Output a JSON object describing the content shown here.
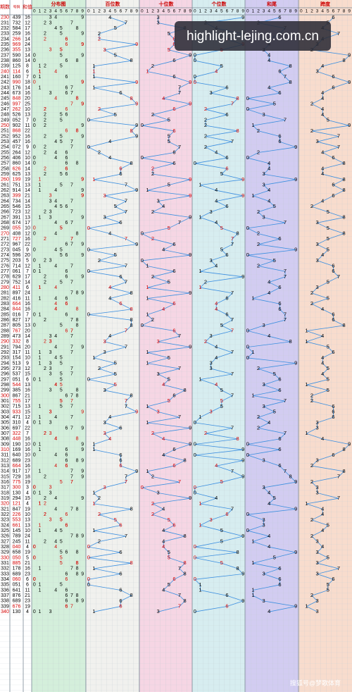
{
  "header": {
    "period": "期数",
    "number": "号码",
    "sum": "和值",
    "sections": [
      "分布图",
      "百位数",
      "十位数",
      "个位数",
      "和尾",
      "跨度"
    ],
    "digits": [
      0,
      1,
      2,
      3,
      4,
      5,
      6,
      7,
      8,
      9
    ]
  },
  "rows": [
    [
      230,
      "439",
      16,
      4,
      3,
      9,
      6,
      6
    ],
    [
      231,
      "732",
      12,
      7,
      3,
      2,
      2,
      5
    ],
    [
      232,
      "584",
      17,
      5,
      8,
      4,
      7,
      4
    ],
    [
      233,
      "259",
      16,
      2,
      5,
      9,
      6,
      7
    ],
    [
      234,
      "266",
      14,
      2,
      6,
      6,
      4,
      4
    ],
    [
      235,
      "969",
      24,
      9,
      6,
      9,
      4,
      3
    ],
    [
      236,
      "355",
      13,
      3,
      5,
      5,
      3,
      2
    ],
    [
      237,
      "590",
      14,
      5,
      9,
      0,
      4,
      9
    ],
    [
      238,
      "860",
      14,
      8,
      6,
      0,
      4,
      8
    ],
    [
      239,
      "125",
      8,
      1,
      2,
      5,
      8,
      4
    ],
    [
      240,
      "114",
      6,
      1,
      1,
      4,
      6,
      3
    ],
    [
      241,
      "160",
      7,
      1,
      6,
      0,
      7,
      6
    ],
    [
      242,
      "990",
      18,
      9,
      9,
      0,
      8,
      9
    ],
    [
      243,
      "176",
      14,
      1,
      7,
      6,
      4,
      6
    ],
    [
      244,
      "673",
      16,
      6,
      7,
      3,
      6,
      4
    ],
    [
      245,
      "848",
      20,
      8,
      4,
      8,
      0,
      4
    ],
    [
      246,
      "997",
      25,
      9,
      9,
      7,
      5,
      2
    ],
    [
      247,
      "262",
      10,
      2,
      6,
      2,
      0,
      4
    ],
    [
      248,
      "526",
      13,
      5,
      2,
      6,
      3,
      4
    ],
    [
      249,
      "052",
      7,
      0,
      5,
      2,
      7,
      5
    ],
    [
      250,
      "902",
      11,
      9,
      0,
      2,
      1,
      9
    ],
    [
      251,
      "868",
      22,
      8,
      6,
      8,
      2,
      2
    ],
    [
      252,
      "952",
      16,
      9,
      5,
      2,
      6,
      7
    ],
    [
      253,
      "457",
      16,
      4,
      5,
      7,
      6,
      3
    ],
    [
      254,
      "072",
      9,
      0,
      7,
      2,
      9,
      7
    ],
    [
      255,
      "264",
      12,
      2,
      6,
      4,
      2,
      4
    ],
    [
      256,
      "406",
      10,
      4,
      0,
      6,
      0,
      6
    ],
    [
      257,
      "860",
      14,
      8,
      6,
      0,
      4,
      8
    ],
    [
      258,
      "626",
      14,
      6,
      2,
      6,
      4,
      4
    ],
    [
      259,
      "625",
      13,
      6,
      2,
      5,
      3,
      4
    ],
    [
      260,
      "199",
      19,
      1,
      9,
      9,
      9,
      8
    ],
    [
      261,
      "751",
      13,
      7,
      5,
      1,
      3,
      6
    ],
    [
      262,
      "914",
      14,
      9,
      1,
      4,
      4,
      8
    ],
    [
      263,
      "399",
      21,
      3,
      9,
      9,
      1,
      6
    ],
    [
      264,
      "734",
      14,
      7,
      3,
      4,
      4,
      4
    ],
    [
      265,
      "546",
      15,
      5,
      4,
      6,
      5,
      2
    ],
    [
      266,
      "723",
      12,
      7,
      2,
      3,
      2,
      5
    ],
    [
      267,
      "391",
      13,
      3,
      9,
      1,
      3,
      8
    ],
    [
      268,
      "674",
      17,
      6,
      7,
      4,
      7,
      3
    ],
    [
      269,
      "055",
      10,
      0,
      5,
      5,
      0,
      5
    ],
    [
      270,
      "408",
      12,
      4,
      0,
      8,
      2,
      8
    ],
    [
      271,
      "727",
      16,
      7,
      2,
      7,
      6,
      5
    ],
    [
      272,
      "967",
      22,
      9,
      6,
      7,
      2,
      3
    ],
    [
      273,
      "045",
      9,
      0,
      4,
      5,
      9,
      5
    ],
    [
      274,
      "596",
      20,
      5,
      9,
      6,
      0,
      4
    ],
    [
      275,
      "203",
      5,
      2,
      0,
      3,
      5,
      3
    ],
    [
      276,
      "714",
      12,
      7,
      1,
      4,
      2,
      6
    ],
    [
      277,
      "061",
      7,
      0,
      6,
      1,
      7,
      6
    ],
    [
      278,
      "629",
      17,
      6,
      2,
      9,
      7,
      7
    ],
    [
      279,
      "752",
      14,
      7,
      5,
      2,
      4,
      5
    ],
    [
      280,
      "411",
      6,
      4,
      1,
      1,
      6,
      3
    ],
    [
      281,
      "897",
      24,
      8,
      9,
      7,
      4,
      2
    ],
    [
      282,
      "416",
      11,
      4,
      1,
      6,
      1,
      5
    ],
    [
      283,
      "664",
      16,
      6,
      6,
      4,
      6,
      2
    ],
    [
      284,
      "844",
      16,
      8,
      4,
      4,
      6,
      4
    ],
    [
      285,
      "016",
      7,
      0,
      1,
      6,
      7,
      6
    ],
    [
      286,
      "827",
      17,
      8,
      2,
      7,
      7,
      6
    ],
    [
      287,
      "805",
      13,
      8,
      0,
      5,
      3,
      8
    ],
    [
      288,
      "767",
      20,
      7,
      6,
      7,
      0,
      1
    ],
    [
      289,
      "473",
      14,
      4,
      7,
      3,
      4,
      4
    ],
    [
      290,
      "332",
      8,
      3,
      3,
      2,
      8,
      1
    ],
    [
      291,
      "794",
      20,
      7,
      9,
      4,
      0,
      5
    ],
    [
      292,
      "317",
      11,
      3,
      1,
      7,
      1,
      6
    ],
    [
      293,
      "154",
      10,
      1,
      5,
      4,
      0,
      4
    ],
    [
      294,
      "513",
      9,
      5,
      1,
      3,
      9,
      4
    ],
    [
      295,
      "273",
      12,
      2,
      7,
      3,
      2,
      5
    ],
    [
      296,
      "537",
      15,
      5,
      3,
      7,
      5,
      4
    ],
    [
      297,
      "051",
      6,
      0,
      5,
      1,
      6,
      5
    ],
    [
      298,
      "544",
      13,
      5,
      4,
      4,
      3,
      1
    ],
    [
      299,
      "385",
      16,
      3,
      8,
      5,
      6,
      5
    ],
    [
      300,
      "867",
      21,
      8,
      6,
      7,
      1,
      2
    ],
    [
      301,
      "755",
      17,
      7,
      5,
      5,
      7,
      2
    ],
    [
      302,
      "715",
      13,
      7,
      1,
      5,
      3,
      6
    ],
    [
      303,
      "933",
      15,
      9,
      3,
      3,
      5,
      6
    ],
    [
      304,
      "471",
      12,
      4,
      7,
      1,
      2,
      6
    ],
    [
      305,
      "310",
      4,
      3,
      1,
      0,
      4,
      3
    ],
    [
      306,
      "697",
      22,
      6,
      9,
      7,
      2,
      3
    ],
    [
      307,
      "322",
      7,
      3,
      2,
      2,
      7,
      1
    ],
    [
      308,
      "448",
      16,
      4,
      4,
      8,
      6,
      4
    ],
    [
      309,
      "190",
      10,
      1,
      9,
      0,
      0,
      9
    ],
    [
      310,
      "169",
      16,
      1,
      6,
      9,
      6,
      8
    ],
    [
      311,
      "640",
      10,
      6,
      4,
      0,
      0,
      6
    ],
    [
      312,
      "689",
      23,
      6,
      8,
      9,
      3,
      3
    ],
    [
      313,
      "664",
      16,
      6,
      6,
      4,
      6,
      2
    ],
    [
      314,
      "917",
      17,
      9,
      1,
      7,
      7,
      8
    ],
    [
      315,
      "729",
      18,
      7,
      2,
      9,
      8,
      7
    ],
    [
      316,
      "775",
      19,
      7,
      7,
      5,
      9,
      2
    ],
    [
      317,
      "300",
      3,
      3,
      0,
      0,
      3,
      3
    ],
    [
      318,
      "130",
      4,
      1,
      3,
      0,
      4,
      3
    ],
    [
      319,
      "294",
      15,
      2,
      9,
      4,
      5,
      7
    ],
    [
      320,
      "121",
      4,
      1,
      2,
      1,
      4,
      1
    ],
    [
      321,
      "847",
      19,
      8,
      4,
      7,
      9,
      4
    ],
    [
      322,
      "226",
      10,
      2,
      2,
      6,
      0,
      4
    ],
    [
      323,
      "553",
      13,
      5,
      5,
      3,
      3,
      2
    ],
    [
      324,
      "661",
      13,
      6,
      6,
      1,
      3,
      5
    ],
    [
      325,
      "145",
      10,
      1,
      4,
      5,
      0,
      4
    ],
    [
      326,
      "789",
      24,
      7,
      8,
      9,
      4,
      2
    ],
    [
      327,
      "245",
      11,
      2,
      4,
      5,
      1,
      3
    ],
    [
      328,
      "040",
      4,
      0,
      4,
      0,
      4,
      4
    ],
    [
      329,
      "658",
      19,
      6,
      5,
      8,
      9,
      3
    ],
    [
      330,
      "050",
      5,
      0,
      5,
      0,
      5,
      5
    ],
    [
      331,
      "885",
      21,
      8,
      8,
      5,
      1,
      3
    ],
    [
      332,
      "178",
      16,
      1,
      7,
      8,
      6,
      7
    ],
    [
      333,
      "689",
      23,
      6,
      8,
      9,
      3,
      3
    ],
    [
      334,
      "060",
      6,
      0,
      6,
      0,
      6,
      6
    ],
    [
      335,
      "051",
      6,
      0,
      5,
      1,
      6,
      5
    ],
    [
      336,
      "641",
      11,
      6,
      4,
      1,
      1,
      5
    ],
    [
      337,
      "876",
      21,
      8,
      7,
      6,
      1,
      2
    ],
    [
      338,
      "689",
      23,
      6,
      8,
      9,
      3,
      3
    ],
    [
      339,
      "676",
      19,
      6,
      7,
      6,
      9,
      1
    ],
    [
      340,
      "130",
      4,
      1,
      3,
      0,
      4,
      3
    ]
  ],
  "watermark": "highlight-lejing.com.cn",
  "footer": "搜狐号@梦歌体育"
}
